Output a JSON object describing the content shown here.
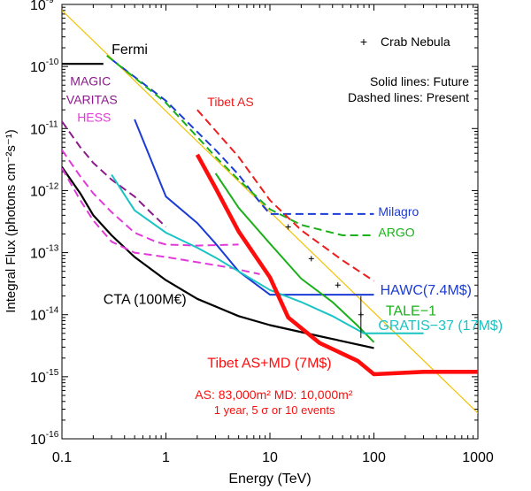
{
  "chart_data": {
    "type": "line",
    "title": "",
    "xlabel": "Energy (TeV)",
    "ylabel": "Integral Flux (photons cm⁻²s⁻¹)",
    "x_scale": "log",
    "y_scale": "log",
    "xlim": [
      0.1,
      1000
    ],
    "ylim": [
      1e-16,
      1e-09
    ],
    "x_ticks": [
      {
        "value": 0.1,
        "label": "0.1"
      },
      {
        "value": 1,
        "label": "1"
      },
      {
        "value": 10,
        "label": "10"
      },
      {
        "value": 100,
        "label": "100"
      },
      {
        "value": 1000,
        "label": "1000"
      }
    ],
    "y_ticks": [
      {
        "value": 1e-16,
        "base": "10",
        "exp": "-16"
      },
      {
        "value": 1e-15,
        "base": "10",
        "exp": "-15"
      },
      {
        "value": 1e-14,
        "base": "10",
        "exp": "-14"
      },
      {
        "value": 1e-13,
        "base": "10",
        "exp": "-13"
      },
      {
        "value": 1e-12,
        "base": "10",
        "exp": "-12"
      },
      {
        "value": 1e-11,
        "base": "10",
        "exp": "-11"
      },
      {
        "value": 1e-10,
        "base": "10",
        "exp": "-10"
      },
      {
        "value": 1e-09,
        "base": "10",
        "exp": "-9"
      }
    ],
    "series": [
      {
        "name": "Crab Nebula",
        "color": "#f2c200",
        "dash": "solid",
        "width": 1.2,
        "points": [
          [
            0.1,
            8e-10
          ],
          [
            1000,
            2.6e-16
          ]
        ]
      },
      {
        "name": "Fermi",
        "color": "#000000",
        "dash": "solid",
        "width": 2.2,
        "points": [
          [
            0.1,
            1.1e-10
          ],
          [
            0.25,
            1.1e-10
          ]
        ]
      },
      {
        "name": "CTA (100M€)",
        "color": "#000000",
        "dash": "solid",
        "width": 2.2,
        "points": [
          [
            0.1,
            2.4e-12
          ],
          [
            0.15,
            9e-13
          ],
          [
            0.2,
            4e-13
          ],
          [
            0.3,
            1.9e-13
          ],
          [
            0.5,
            8.5e-14
          ],
          [
            1,
            3.6e-14
          ],
          [
            2,
            1.8e-14
          ],
          [
            5,
            9.5e-15
          ],
          [
            10,
            6.8e-15
          ],
          [
            30,
            4.5e-15
          ],
          [
            100,
            2.9e-15
          ]
        ]
      },
      {
        "name": "MAGIC",
        "color": "#8b1a8b",
        "dash": "dashed",
        "width": 2.0,
        "points": [
          [
            0.1,
            1.3e-11
          ],
          [
            0.15,
            5e-12
          ],
          [
            0.2,
            2.8e-12
          ],
          [
            0.3,
            1.5e-12
          ],
          [
            0.5,
            8e-13
          ],
          [
            0.7,
            4.6e-13
          ],
          [
            1,
            2.6e-13
          ]
        ]
      },
      {
        "name": "VARITAS",
        "color": "#e23ad8",
        "dash": "dashed",
        "width": 2.0,
        "points": [
          [
            0.1,
            4.5e-12
          ],
          [
            0.15,
            1.7e-12
          ],
          [
            0.2,
            9e-13
          ],
          [
            0.3,
            4.5e-13
          ],
          [
            0.5,
            2.1e-13
          ],
          [
            0.8,
            1.5e-13
          ],
          [
            1,
            1.35e-13
          ],
          [
            2,
            1.3e-13
          ],
          [
            5,
            1.35e-13
          ]
        ]
      },
      {
        "name": "HESS",
        "color": "#e23ad8",
        "dash": "dashed",
        "width": 2.0,
        "points": [
          [
            0.1,
            2.3e-12
          ],
          [
            0.15,
            7e-13
          ],
          [
            0.2,
            3.3e-13
          ],
          [
            0.3,
            1.5e-13
          ],
          [
            0.5,
            1e-13
          ],
          [
            1,
            8.5e-14
          ],
          [
            2,
            7e-14
          ],
          [
            4,
            5.8e-14
          ],
          [
            8,
            4.5e-14
          ]
        ]
      },
      {
        "name": "Milagro",
        "color": "#1b3bd6",
        "dash": "dashed",
        "width": 2.0,
        "points": [
          [
            0.3,
            1.3e-10
          ],
          [
            1,
            2.8e-11
          ],
          [
            3,
            4.5e-12
          ],
          [
            5,
            1.8e-12
          ],
          [
            8,
            6.5e-13
          ],
          [
            10,
            4.2e-13
          ],
          [
            20,
            4.2e-13
          ],
          [
            100,
            4.2e-13
          ]
        ]
      },
      {
        "name": "ARGO",
        "color": "#1bb01b",
        "dash": "dashed",
        "width": 2.0,
        "points": [
          [
            0.27,
            1.5e-10
          ],
          [
            1,
            2.6e-11
          ],
          [
            3,
            3.5e-12
          ],
          [
            5,
            1.5e-12
          ],
          [
            10,
            5e-13
          ],
          [
            20,
            2.8e-13
          ],
          [
            50,
            1.9e-13
          ],
          [
            100,
            1.9e-13
          ]
        ]
      },
      {
        "name": "Tibet AS",
        "color": "#ee1c1c",
        "dash": "dashed",
        "width": 2.0,
        "points": [
          [
            2,
            2e-11
          ],
          [
            5,
            3.5e-12
          ],
          [
            10,
            7e-13
          ],
          [
            20,
            2.3e-13
          ],
          [
            50,
            7.5e-14
          ],
          [
            100,
            3.5e-14
          ]
        ]
      },
      {
        "name": "HAWC(7.4M$)",
        "color": "#1b3bd6",
        "dash": "solid",
        "width": 2.0,
        "points": [
          [
            0.5,
            1.4e-11
          ],
          [
            1,
            8e-13
          ],
          [
            2,
            3e-13
          ],
          [
            3,
            1.4e-13
          ],
          [
            5,
            5e-14
          ],
          [
            10,
            2.1e-14
          ],
          [
            100,
            2.1e-14
          ]
        ]
      },
      {
        "name": "TALE−1",
        "color": "#1bb01b",
        "dash": "solid",
        "width": 2.0,
        "points": [
          [
            3,
            1.9e-12
          ],
          [
            5,
            5.3e-13
          ],
          [
            10,
            1.4e-13
          ],
          [
            20,
            3.8e-14
          ],
          [
            40,
            1.6e-14
          ],
          [
            70,
            6.6e-15
          ],
          [
            100,
            3.6e-15
          ]
        ]
      },
      {
        "name": "GRATIS−37 (17M$)",
        "color": "#18c4c4",
        "dash": "solid",
        "width": 2.0,
        "points": [
          [
            0.3,
            1.8e-12
          ],
          [
            0.5,
            4.8e-13
          ],
          [
            1,
            2.1e-13
          ],
          [
            2,
            1.2e-13
          ],
          [
            3,
            8.3e-14
          ],
          [
            5,
            5e-14
          ],
          [
            10,
            2.5e-14
          ],
          [
            20,
            1.6e-14
          ],
          [
            40,
            9.5e-15
          ],
          [
            80,
            5e-15
          ],
          [
            200,
            5e-15
          ],
          [
            300,
            5e-15
          ]
        ]
      },
      {
        "name": "Tibet AS+MD (7M$)",
        "color": "#ff0d0d",
        "dash": "solid",
        "width": 4.6,
        "points": [
          [
            2,
            3.8e-12
          ],
          [
            3,
            1.1e-12
          ],
          [
            5,
            2.2e-13
          ],
          [
            10,
            4e-14
          ],
          [
            15,
            9e-15
          ],
          [
            30,
            3.5e-15
          ],
          [
            70,
            1.8e-15
          ],
          [
            100,
            1.1e-15
          ],
          [
            300,
            1.2e-15
          ],
          [
            1000,
            1.2e-15
          ]
        ]
      }
    ],
    "crab_markers": [
      {
        "x": 15,
        "y": 2.6e-13
      },
      {
        "x": 25,
        "y": 8e-14
      },
      {
        "x": 45,
        "y": 3e-14
      },
      {
        "x": 75,
        "y": 1e-14
      }
    ],
    "labels": [
      {
        "text": "Fermi",
        "color": "#000000",
        "at": [
          0.3,
          1.6e-10
        ],
        "size": 16,
        "anchor": "start"
      },
      {
        "text": "MAGIC",
        "color": "#8b1a8b",
        "at": [
          0.12,
          5e-11
        ],
        "size": 14,
        "anchor": "start"
      },
      {
        "text": "VARITAS",
        "color": "#8b1a8b",
        "at": [
          0.11,
          2.5e-11
        ],
        "size": 14,
        "anchor": "start"
      },
      {
        "text": "HESS",
        "color": "#e23ad8",
        "at": [
          0.14,
          1.3e-11
        ],
        "size": 14,
        "anchor": "start"
      },
      {
        "text": "Tibet AS",
        "color": "#ee1c1c",
        "at": [
          2.5,
          2.3e-11
        ],
        "size": 14,
        "anchor": "start"
      },
      {
        "text": "Milagro",
        "color": "#1b3bd6",
        "at": [
          110,
          3.9e-13
        ],
        "size": 14,
        "anchor": "start"
      },
      {
        "text": "ARGO",
        "color": "#1bb01b",
        "at": [
          110,
          1.8e-13
        ],
        "size": 14,
        "anchor": "start"
      },
      {
        "text": "HAWC(7.4M$)",
        "color": "#1b3bd6",
        "at": [
          115,
          2.1e-14
        ],
        "size": 16,
        "anchor": "start"
      },
      {
        "text": "TALE−1",
        "color": "#1bb01b",
        "at": [
          130,
          9.8e-15
        ],
        "size": 16,
        "anchor": "start"
      },
      {
        "text": "GRATIS−37 (17M$)",
        "color": "#18c4c4",
        "at": [
          110,
          5.7e-15
        ],
        "size": 16,
        "anchor": "start"
      },
      {
        "text": "CTA (100M€)",
        "color": "#000000",
        "at": [
          0.25,
          1.5e-14
        ],
        "size": 16,
        "anchor": "start"
      },
      {
        "text": "Tibet AS+MD (7M$)",
        "color": "#ff0d0d",
        "at": [
          2.5,
          1.4e-15
        ],
        "size": 16,
        "anchor": "start"
      },
      {
        "text": "AS: 83,000m² MD: 10,000m²",
        "color": "#ff0d0d",
        "at": [
          1.9,
          4.4e-16
        ],
        "size": 14,
        "anchor": "start"
      },
      {
        "text": "1 year, 5 σ or 10 events",
        "color": "#ff0d0d",
        "at": [
          2.9,
          2.5e-16
        ],
        "size": 13,
        "anchor": "start"
      }
    ],
    "legend": {
      "placement": "top-right",
      "crab": "Crab Nebula",
      "solid": "Solid lines: Future",
      "dashed": "Dashed lines: Present"
    }
  }
}
